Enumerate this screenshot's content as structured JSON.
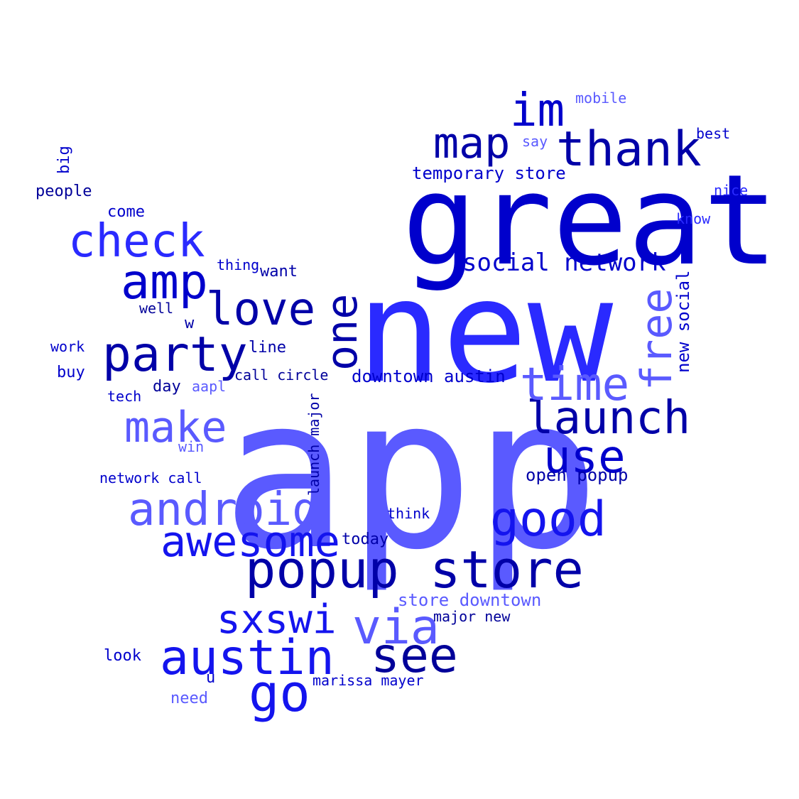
{
  "palette": {
    "c1": "#0000cc",
    "c2": "#0000a8",
    "c3": "#1414ee",
    "c4": "#2a2aff",
    "c5": "#5a5aff",
    "c6": "#000099"
  },
  "words": [
    {
      "key": "app",
      "text": "app",
      "color": "c5"
    },
    {
      "key": "new",
      "text": "new",
      "color": "c4"
    },
    {
      "key": "great",
      "text": "great",
      "color": "c1"
    },
    {
      "key": "popup_store",
      "text": "popup store",
      "color": "c2"
    },
    {
      "key": "austin",
      "text": "austin",
      "color": "c3"
    },
    {
      "key": "thank",
      "text": "thank",
      "color": "c2"
    },
    {
      "key": "party",
      "text": "party",
      "color": "c2"
    },
    {
      "key": "launch",
      "text": "launch",
      "color": "c2"
    },
    {
      "key": "android",
      "text": "android",
      "color": "c5"
    },
    {
      "key": "check",
      "text": "check",
      "color": "c4"
    },
    {
      "key": "awesome",
      "text": "awesome",
      "color": "c3"
    },
    {
      "key": "good",
      "text": "good",
      "color": "c3"
    },
    {
      "key": "see",
      "text": "see",
      "color": "c6"
    },
    {
      "key": "amp",
      "text": "amp",
      "color": "c1"
    },
    {
      "key": "love",
      "text": "love",
      "color": "c2"
    },
    {
      "key": "time",
      "text": "time",
      "color": "c5"
    },
    {
      "key": "make",
      "text": "make",
      "color": "c5"
    },
    {
      "key": "map",
      "text": "map",
      "color": "c2"
    },
    {
      "key": "im",
      "text": "im",
      "color": "c1"
    },
    {
      "key": "use",
      "text": "use",
      "color": "c1"
    },
    {
      "key": "sxswi",
      "text": "sxswi",
      "color": "c3"
    },
    {
      "key": "via",
      "text": "via",
      "color": "c5"
    },
    {
      "key": "go",
      "text": "go",
      "color": "c3"
    },
    {
      "key": "one",
      "text": "one",
      "color": "c2"
    },
    {
      "key": "free",
      "text": "free",
      "color": "c5"
    },
    {
      "key": "social_network",
      "text": "social network",
      "color": "c1"
    },
    {
      "key": "temporary_store",
      "text": "temporary store",
      "color": "c1"
    },
    {
      "key": "downtown_austin",
      "text": "downtown austin",
      "color": "c1"
    },
    {
      "key": "store_downtown",
      "text": "store downtown",
      "color": "c5"
    },
    {
      "key": "open_popup",
      "text": "open popup",
      "color": "c2"
    },
    {
      "key": "new_social",
      "text": "new social",
      "color": "c1"
    },
    {
      "key": "launch_major",
      "text": "launch major",
      "color": "c2"
    },
    {
      "key": "people",
      "text": "people",
      "color": "c6"
    },
    {
      "key": "come",
      "text": "come",
      "color": "c1"
    },
    {
      "key": "want",
      "text": "want",
      "color": "c2"
    },
    {
      "key": "line",
      "text": "line",
      "color": "c2"
    },
    {
      "key": "buy",
      "text": "buy",
      "color": "c1"
    },
    {
      "key": "day",
      "text": "day",
      "color": "c6"
    },
    {
      "key": "look",
      "text": "look",
      "color": "c1"
    },
    {
      "key": "need",
      "text": "need",
      "color": "c5"
    },
    {
      "key": "today",
      "text": "today",
      "color": "c2"
    },
    {
      "key": "call_circle",
      "text": "call circle",
      "color": "c6"
    },
    {
      "key": "network_call",
      "text": "network call",
      "color": "c1"
    },
    {
      "key": "marissa_mayer",
      "text": "marissa mayer",
      "color": "c1"
    },
    {
      "key": "major_new",
      "text": "major new",
      "color": "c6"
    },
    {
      "key": "think",
      "text": "think",
      "color": "c1"
    },
    {
      "key": "mobile",
      "text": "mobile",
      "color": "c5"
    },
    {
      "key": "best",
      "text": "best",
      "color": "c1"
    },
    {
      "key": "nice",
      "text": "nice",
      "color": "c4"
    },
    {
      "key": "know",
      "text": "know",
      "color": "c4"
    },
    {
      "key": "say",
      "text": "say",
      "color": "c5"
    },
    {
      "key": "big",
      "text": "big",
      "color": "c1"
    },
    {
      "key": "thing",
      "text": "thing",
      "color": "c1"
    },
    {
      "key": "well",
      "text": "well",
      "color": "c6"
    },
    {
      "key": "w",
      "text": "w",
      "color": "c2"
    },
    {
      "key": "work",
      "text": "work",
      "color": "c1"
    },
    {
      "key": "tech",
      "text": "tech",
      "color": "c1"
    },
    {
      "key": "aapl",
      "text": "aapl",
      "color": "c5"
    },
    {
      "key": "win",
      "text": "win",
      "color": "c5"
    },
    {
      "key": "u",
      "text": "u",
      "color": "c1"
    }
  ]
}
